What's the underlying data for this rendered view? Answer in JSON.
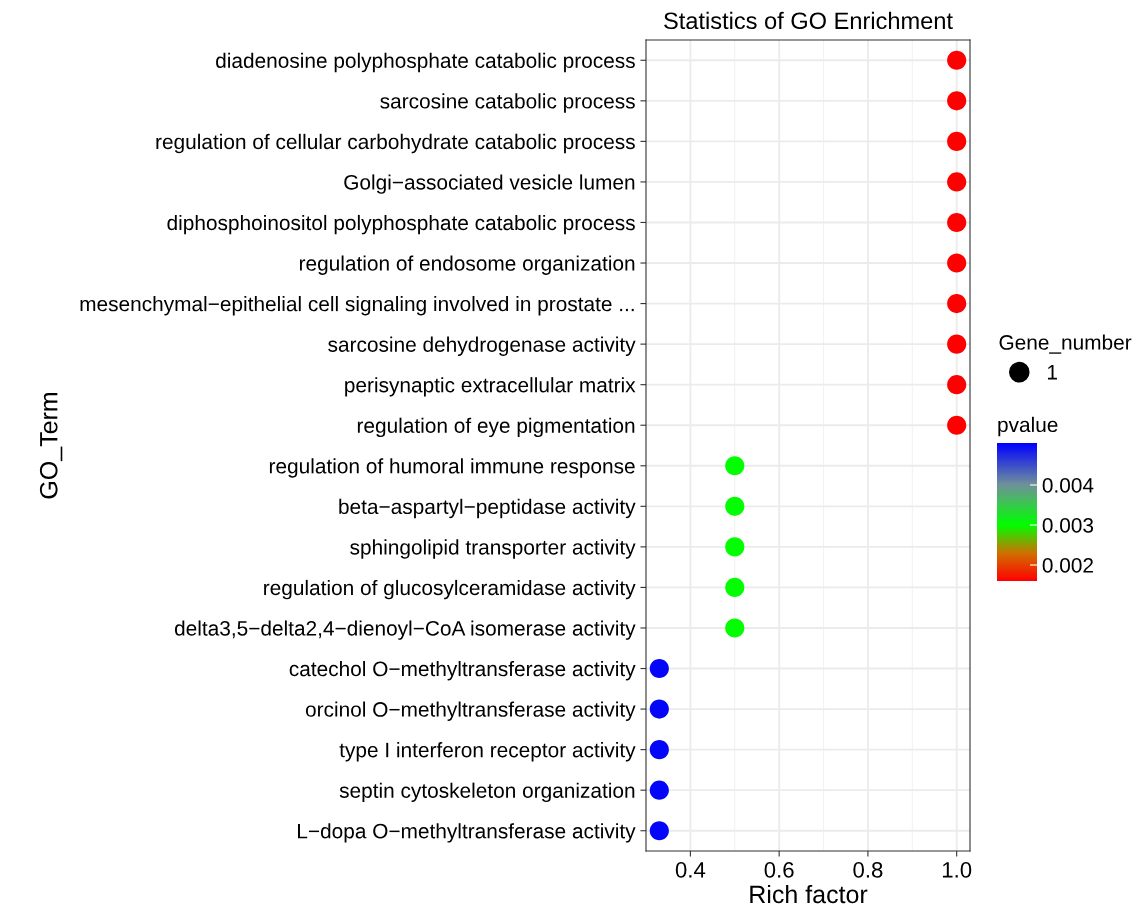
{
  "chart_data": {
    "type": "scatter",
    "title": "Statistics of GO Enrichment",
    "xlabel": "Rich factor",
    "ylabel": "GO_Term",
    "legend_title": "Gene_number",
    "clabel": "pvalue",
    "categories": [
      "diadenosine polyphosphate catabolic process",
      "sarcosine catabolic process",
      "regulation of cellular carbohydrate catabolic process",
      "Golgi−associated vesicle lumen",
      "diphosphoinositol polyphosphate catabolic process",
      "regulation of endosome organization",
      "mesenchymal−epithelial cell signaling involved in prostate ...",
      "sarcosine dehydrogenase activity",
      "perisynaptic extracellular matrix",
      "regulation of eye pigmentation",
      "regulation of humoral immune response",
      "beta−aspartyl−peptidase activity",
      "sphingolipid transporter activity",
      "regulation of glucosylceramidase activity",
      "delta3,5−delta2,4−dienoyl−CoA isomerase activity",
      "catechol O−methyltransferase activity",
      "orcinol O−methyltransferase activity",
      "type I interferon receptor activity",
      "septin cytoskeleton organization",
      "L−dopa O−methyltransferase activity"
    ],
    "values": [
      1.0,
      1.0,
      1.0,
      1.0,
      1.0,
      1.0,
      1.0,
      1.0,
      1.0,
      1.0,
      0.5,
      0.5,
      0.5,
      0.5,
      0.5,
      0.33,
      0.33,
      0.33,
      0.33,
      0.33
    ],
    "cvalues": [
      0.0016,
      0.0016,
      0.0016,
      0.0016,
      0.0016,
      0.0016,
      0.0016,
      0.0016,
      0.0016,
      0.0016,
      0.003,
      0.003,
      0.003,
      0.003,
      0.003,
      0.005,
      0.005,
      0.005,
      0.005,
      0.005
    ],
    "sizes": [
      1,
      1,
      1,
      1,
      1,
      1,
      1,
      1,
      1,
      1,
      1,
      1,
      1,
      1,
      1,
      1,
      1,
      1,
      1,
      1
    ],
    "size_legend": [
      1
    ],
    "orientation": "horizontal",
    "xlim": [
      0.3,
      1.03
    ],
    "xticks": [
      {
        "value": 0.4,
        "label": "0.4"
      },
      {
        "value": 0.6,
        "label": "0.6"
      },
      {
        "value": 0.8,
        "label": "0.8"
      },
      {
        "value": 1.0,
        "label": "1.0"
      }
    ],
    "clim": [
      0.0016,
      0.00505
    ],
    "cticks": [
      0.002,
      0.003,
      0.004
    ],
    "grid": true,
    "marker": "circle"
  }
}
